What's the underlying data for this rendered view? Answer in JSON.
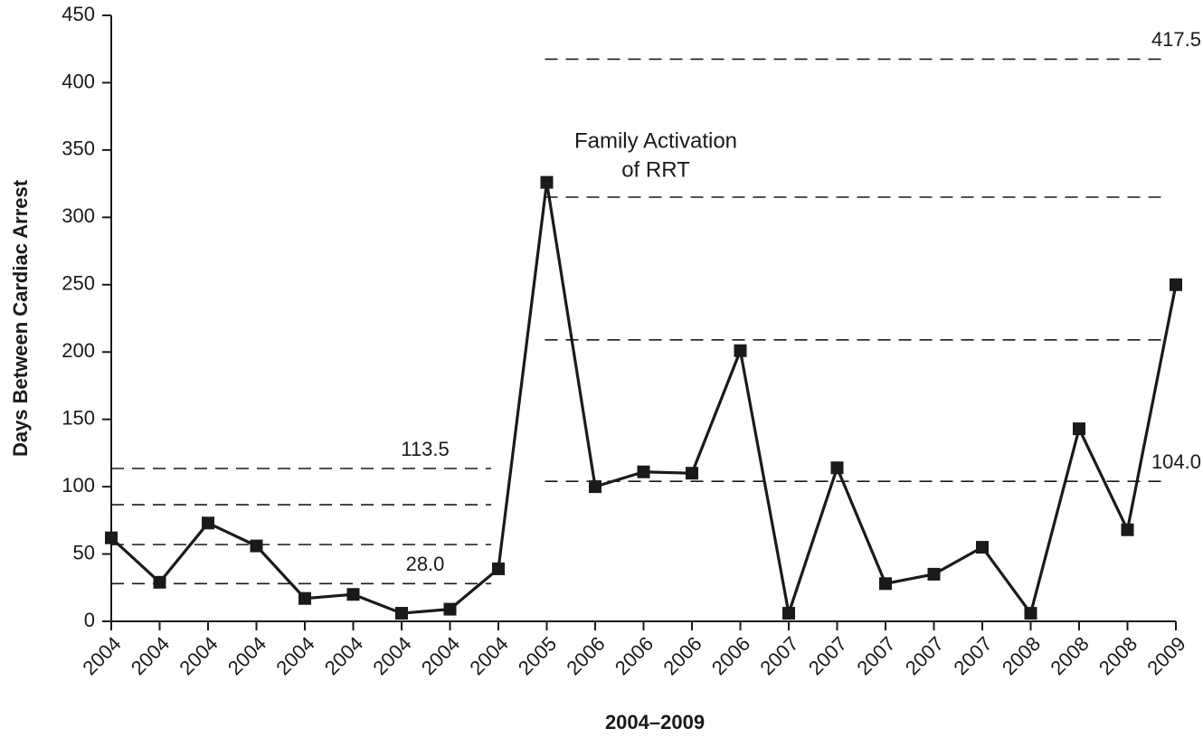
{
  "chart_data": {
    "type": "line",
    "xlabel": "2004–2009",
    "ylabel": "Days Between Cardiac Arrest",
    "annotation": [
      "Family Activation",
      "of RRT"
    ],
    "categories": [
      "2004",
      "2004",
      "2004",
      "2004",
      "2004",
      "2004",
      "2004",
      "2004",
      "2004",
      "2005",
      "2006",
      "2006",
      "2006",
      "2006",
      "2007",
      "2007",
      "2007",
      "2007",
      "2007",
      "2008",
      "2008",
      "2008",
      "2009"
    ],
    "series": [
      {
        "color": "#1a1a1a",
        "values": [
          62,
          29,
          73,
          56,
          17,
          20,
          6,
          9,
          39,
          326,
          100,
          111,
          110,
          201,
          6,
          114,
          28,
          35,
          55,
          6,
          143,
          68,
          250
        ]
      }
    ],
    "ylim": [
      0,
      450
    ],
    "yticks": [
      0,
      50,
      100,
      150,
      200,
      250,
      300,
      350,
      400,
      450
    ],
    "reference_segments": [
      {
        "start_index": 0,
        "end_index": 8,
        "lines": [
          113.5,
          86.6,
          57.0,
          {
            "value": 28.0,
            "label": "28.0"
          }
        ]
      },
      {
        "start_index": 9,
        "end_index": 22,
        "lines": [
          417.5,
          315,
          209,
          {
            "value": 104.0,
            "label": "104.0"
          }
        ]
      }
    ]
  }
}
